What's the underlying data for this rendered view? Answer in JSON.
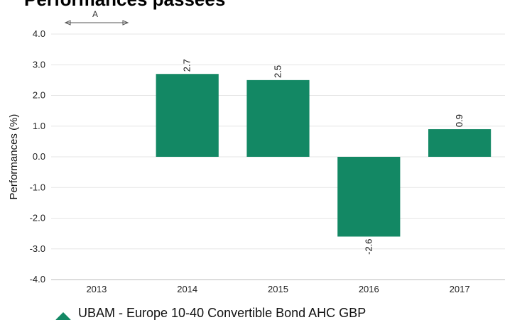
{
  "chart_data": {
    "type": "bar",
    "title": "Performances passées",
    "ylabel": "Performances (%)",
    "xlabel": "",
    "categories": [
      "2013",
      "2014",
      "2015",
      "2016",
      "2017"
    ],
    "series": [
      {
        "name": "UBAM - Europe 10-40 Convertible Bond AHC GBP",
        "values": [
          null,
          2.7,
          2.5,
          -2.6,
          0.9
        ],
        "color": "#138864"
      }
    ],
    "data_labels": [
      "",
      "2.7",
      "2.5",
      "-2.6",
      "0.9"
    ],
    "ylim": [
      -4.0,
      4.0
    ],
    "yticks": [
      "4.0",
      "3.0",
      "2.0",
      "1.0",
      "0.0",
      "-1.0",
      "-2.0",
      "-3.0",
      "-4.0"
    ],
    "grid": true,
    "legend_position": "bottom-left",
    "period_marker": {
      "label": "A",
      "category": "2013"
    }
  }
}
